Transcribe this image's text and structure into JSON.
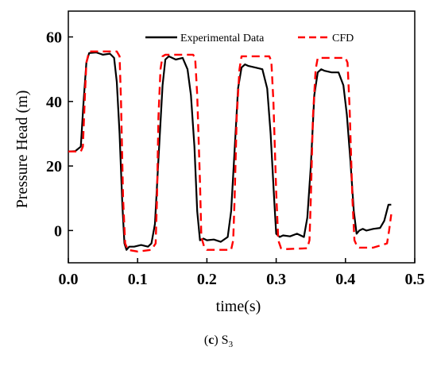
{
  "chart_data": {
    "type": "line",
    "title": "",
    "xlabel": "time(s)",
    "ylabel": "Pressure Head (m)",
    "xlim": [
      0.0,
      0.5
    ],
    "ylim": [
      -10,
      68
    ],
    "x_ticks": [
      "0.0",
      "0.1",
      "0.2",
      "0.3",
      "0.4",
      "0.5"
    ],
    "x_tick_values": [
      0.0,
      0.1,
      0.2,
      0.3,
      0.4,
      0.5
    ],
    "y_ticks": [
      "0",
      "20",
      "40",
      "60"
    ],
    "y_tick_values": [
      0,
      20,
      40,
      60
    ],
    "grid": false,
    "legend_position": "top-right",
    "series": [
      {
        "name": "Experimental Data",
        "color": "#000000",
        "style": "solid",
        "x": [
          0.0,
          0.01,
          0.018,
          0.022,
          0.026,
          0.03,
          0.04,
          0.05,
          0.06,
          0.066,
          0.07,
          0.074,
          0.078,
          0.081,
          0.084,
          0.088,
          0.095,
          0.105,
          0.115,
          0.12,
          0.125,
          0.13,
          0.136,
          0.14,
          0.145,
          0.155,
          0.165,
          0.172,
          0.177,
          0.182,
          0.186,
          0.19,
          0.195,
          0.2,
          0.21,
          0.22,
          0.23,
          0.235,
          0.24,
          0.245,
          0.25,
          0.255,
          0.26,
          0.27,
          0.28,
          0.287,
          0.292,
          0.297,
          0.3,
          0.305,
          0.31,
          0.32,
          0.33,
          0.34,
          0.345,
          0.35,
          0.355,
          0.36,
          0.365,
          0.37,
          0.38,
          0.39,
          0.397,
          0.402,
          0.407,
          0.412,
          0.416,
          0.42,
          0.425,
          0.43,
          0.44,
          0.45,
          0.456,
          0.462,
          0.466
        ],
        "y": [
          24.5,
          24.6,
          26,
          40,
          52,
          55,
          55.2,
          54.5,
          54.8,
          53.5,
          46,
          30,
          8,
          -4,
          -6,
          -5,
          -5,
          -4.5,
          -5,
          -4,
          2,
          22,
          45,
          53,
          54,
          53,
          53.5,
          50,
          42,
          26,
          6,
          -3,
          -2.5,
          -3,
          -2.8,
          -3.5,
          -2,
          6,
          25,
          44,
          50.5,
          51.5,
          51,
          50.5,
          50,
          44,
          30,
          10,
          -1,
          -2,
          -1.5,
          -1.8,
          -1,
          -2,
          4,
          20,
          42,
          49,
          50,
          49.5,
          49,
          49,
          45,
          36,
          22,
          6,
          -1,
          0,
          0.5,
          0,
          0.5,
          0.8,
          3,
          8,
          8
        ]
      },
      {
        "name": "CFD",
        "color": "#ff0000",
        "style": "dashed",
        "x": [
          0.0,
          0.018,
          0.021,
          0.024,
          0.026,
          0.03,
          0.07,
          0.074,
          0.076,
          0.079,
          0.082,
          0.086,
          0.1,
          0.12,
          0.126,
          0.128,
          0.13,
          0.133,
          0.136,
          0.14,
          0.18,
          0.183,
          0.186,
          0.19,
          0.192,
          0.196,
          0.2,
          0.235,
          0.238,
          0.24,
          0.243,
          0.247,
          0.25,
          0.29,
          0.293,
          0.296,
          0.3,
          0.303,
          0.307,
          0.31,
          0.345,
          0.348,
          0.35,
          0.353,
          0.357,
          0.36,
          0.4,
          0.403,
          0.406,
          0.41,
          0.413,
          0.417,
          0.42,
          0.44,
          0.46,
          0.463,
          0.466
        ],
        "y": [
          24.5,
          24.5,
          26,
          42,
          52,
          55.5,
          55.5,
          54,
          40,
          10,
          -4,
          -6,
          -6.5,
          -6,
          -4,
          10,
          35,
          50,
          54,
          54.5,
          54.5,
          53.5,
          42,
          15,
          -2,
          -5,
          -6,
          -6,
          -3,
          10,
          35,
          50,
          54,
          54,
          52.5,
          40,
          12,
          -3,
          -5.5,
          -5.8,
          -5.5,
          -3,
          10,
          35,
          50,
          53.5,
          53.5,
          52,
          38,
          10,
          -3,
          -5,
          -5.3,
          -5.3,
          -4,
          0,
          5
        ]
      }
    ]
  },
  "caption": {
    "label_bold": "c",
    "label_suffix": " S",
    "subscript": "3"
  }
}
